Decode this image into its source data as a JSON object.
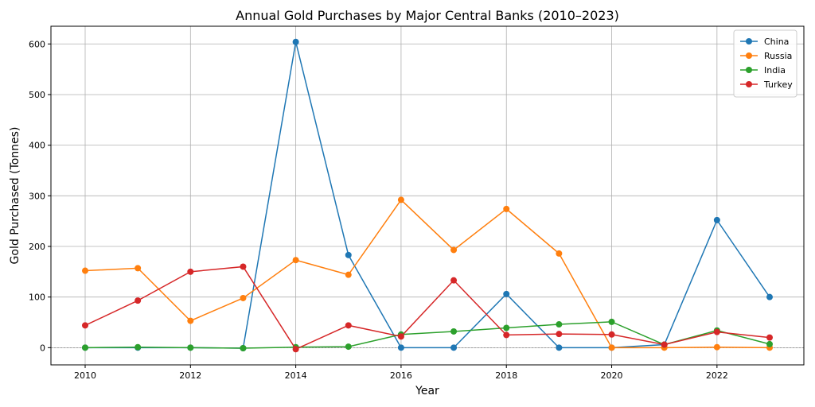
{
  "chart_data": {
    "type": "line",
    "title": "Annual Gold Purchases by Major Central Banks (2010–2023)",
    "xlabel": "Year",
    "ylabel": "Gold Purchased (Tonnes)",
    "x": [
      2010,
      2011,
      2012,
      2013,
      2014,
      2015,
      2016,
      2017,
      2018,
      2019,
      2020,
      2021,
      2022,
      2023
    ],
    "xlim": [
      2009.35,
      2023.65
    ],
    "ylim": [
      -34,
      635
    ],
    "xticks": [
      2010,
      2012,
      2014,
      2016,
      2018,
      2020,
      2022
    ],
    "yticks": [
      0,
      100,
      200,
      300,
      400,
      500,
      600
    ],
    "grid": true,
    "legend_position": "top-right",
    "series": [
      {
        "name": "China",
        "color": "#1f77b4",
        "values": [
          0,
          0,
          0,
          -1,
          604,
          183,
          0,
          0,
          106,
          0,
          0,
          6,
          252,
          100
        ]
      },
      {
        "name": "Russia",
        "color": "#ff7f0e",
        "values": [
          152,
          157,
          53,
          98,
          173,
          144,
          292,
          193,
          274,
          186,
          0,
          0,
          1,
          0
        ]
      },
      {
        "name": "India",
        "color": "#2ca02c",
        "values": [
          0,
          1,
          0,
          -1,
          1,
          2,
          26,
          32,
          39,
          46,
          51,
          6,
          34,
          7
        ]
      },
      {
        "name": "Turkey",
        "color": "#d62728",
        "values": [
          44,
          93,
          150,
          160,
          -3,
          44,
          22,
          133,
          25,
          27,
          26,
          6,
          31,
          20
        ]
      }
    ]
  }
}
